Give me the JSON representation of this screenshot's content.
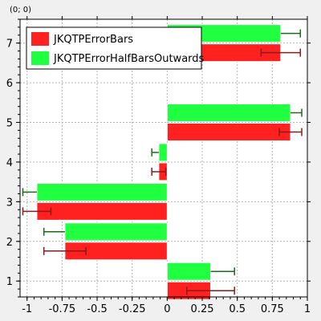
{
  "coord_readout": "(0; 0)",
  "chart_data": {
    "type": "bar",
    "orientation": "horizontal",
    "title": "",
    "xlabel": "",
    "ylabel": "",
    "xlim": [
      -1.05,
      1.0
    ],
    "ylim": [
      0.6,
      7.6
    ],
    "x_ticks": [
      -1,
      -0.75,
      -0.5,
      -0.25,
      0,
      0.25,
      0.5,
      0.75,
      1
    ],
    "x_tick_labels": [
      "-1",
      "-0.75",
      "-0.5",
      "-0.25",
      "0",
      "0.25",
      "0.5",
      "0.75",
      "1"
    ],
    "y_ticks": [
      1,
      2,
      3,
      4,
      5,
      6,
      7
    ],
    "y_tick_labels": [
      "1",
      "2",
      "3",
      "4",
      "5",
      "6",
      "7"
    ],
    "grid": true,
    "legend_position": "top-left",
    "categories": [
      1,
      2,
      3,
      4,
      5,
      6,
      7
    ],
    "series": [
      {
        "name": "JKQTPErrorBars",
        "color": "#ff2020",
        "error_color": "#8b1a1a",
        "values": [
          0.31,
          -0.73,
          -0.93,
          -0.06,
          0.88,
          0,
          0.81
        ],
        "errors": [
          0.17,
          0.15,
          0.1,
          0.05,
          0.08,
          0,
          0.14
        ],
        "error_style": "symmetric"
      },
      {
        "name": "JKQTPErrorHalfBarsOutwards",
        "color": "#20ff40",
        "error_color": "#1a6b1a",
        "values": [
          0.31,
          -0.73,
          -0.93,
          -0.06,
          0.88,
          0,
          0.81
        ],
        "errors": [
          0.17,
          0.15,
          0.1,
          0.05,
          0.08,
          0,
          0.14
        ],
        "error_style": "outward-half"
      }
    ]
  }
}
